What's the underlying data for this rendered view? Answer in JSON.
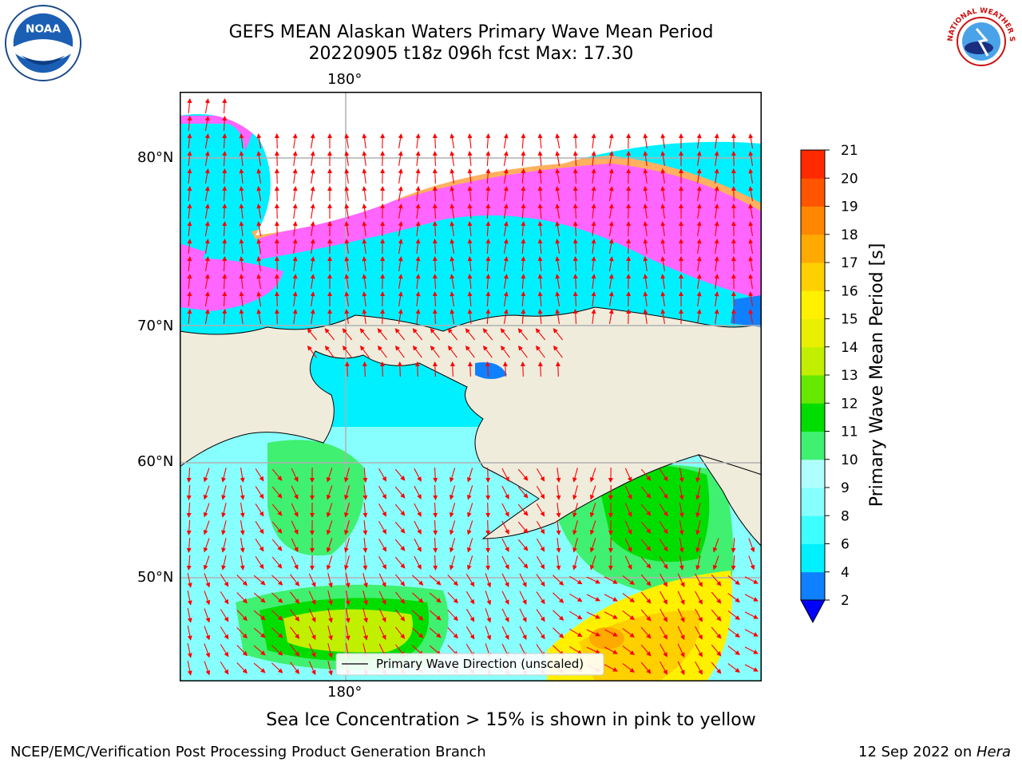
{
  "title": {
    "line1": "GEFS MEAN Alaskan Waters Primary Wave Mean Period",
    "line2": "20220905 t18z 096h fcst   Max: 17.30"
  },
  "map": {
    "lat_labels": [
      "80°N",
      "70°N",
      "60°N",
      "50°N"
    ],
    "lon_label_top": "180°",
    "lon_label_bottom": "180°",
    "legend_label": "Primary Wave Direction (unscaled)",
    "land_color": "#efecdc",
    "arrow_color": "#ff0000"
  },
  "colorbar": {
    "label": "Primary Wave Mean Period [s]",
    "ticks": [
      "2",
      "4",
      "6",
      "8",
      "9",
      "10",
      "11",
      "12",
      "13",
      "14",
      "15",
      "16",
      "17",
      "18",
      "19",
      "20",
      "21"
    ],
    "colors": [
      "#0f80ff",
      "#00f0ff",
      "#3effff",
      "#88ffff",
      "#b0ffff",
      "#40f070",
      "#00dd00",
      "#66e800",
      "#c0f000",
      "#e8f000",
      "#fff000",
      "#ffd000",
      "#ffaa00",
      "#ff8800",
      "#ff5500",
      "#ff2a00"
    ],
    "under_color": "#0000ff"
  },
  "note": "Sea Ice Concentration > 15% is shown in pink to yellow",
  "footer": {
    "left": "NCEP/EMC/Verification Post Processing Product Generation Branch",
    "right_date": "12 Sep 2022 on ",
    "right_host": "Hera"
  },
  "logos": {
    "noaa_text": "NOAA",
    "nws_text": "NATIONAL WEATHER SERVICE"
  }
}
